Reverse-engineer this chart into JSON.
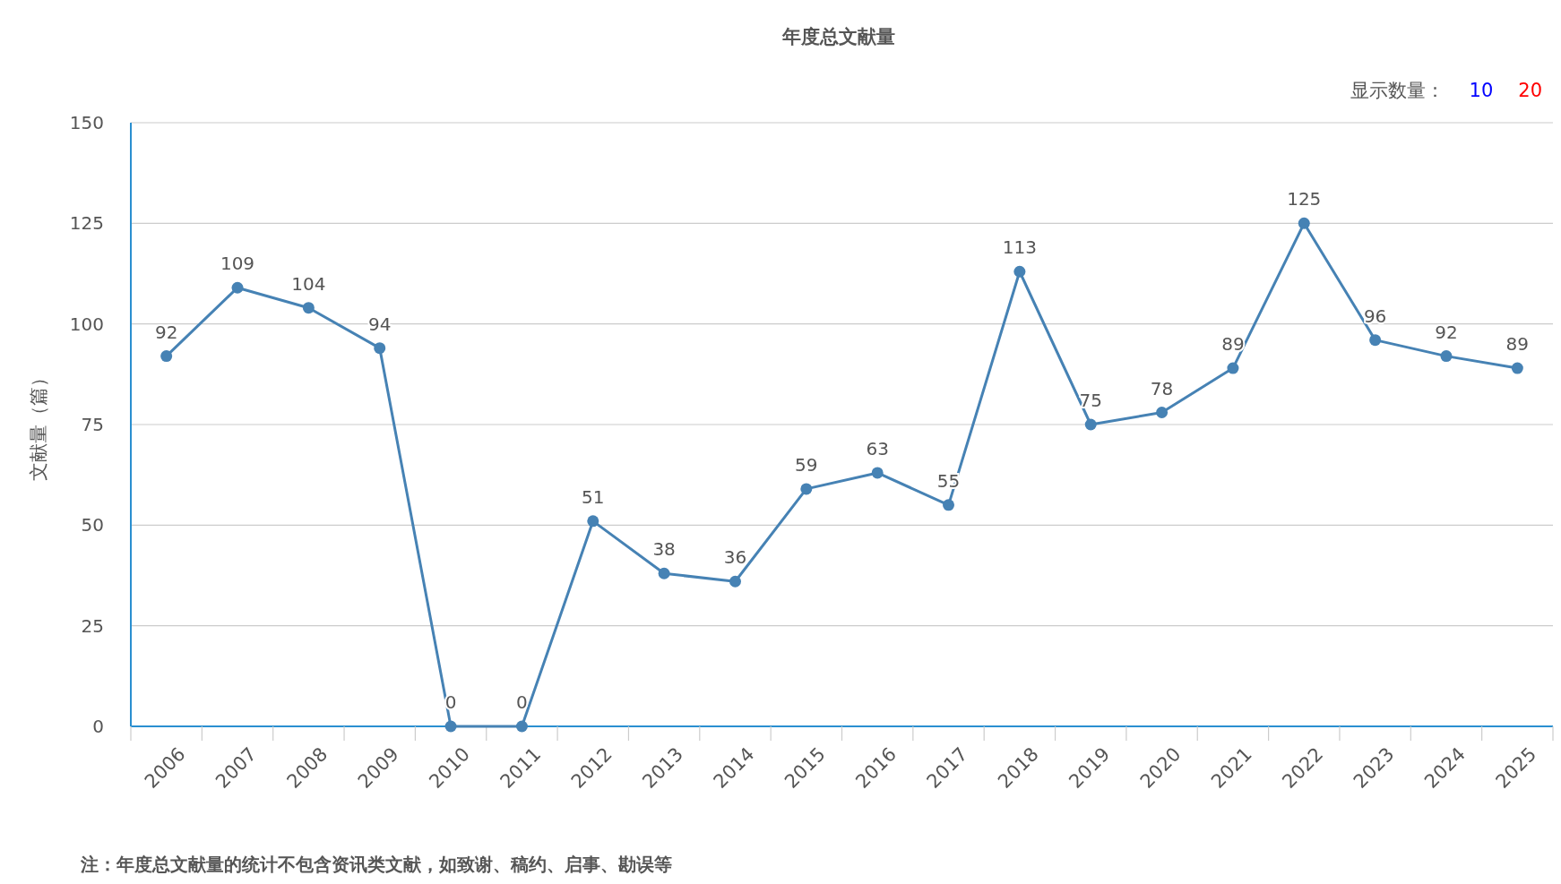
{
  "chart_data": {
    "type": "line",
    "title": "年度总文献量",
    "ylabel": "文献量（篇）",
    "categories": [
      "2006",
      "2007",
      "2008",
      "2009",
      "2010",
      "2011",
      "2012",
      "2013",
      "2014",
      "2015",
      "2016",
      "2017",
      "2018",
      "2019",
      "2020",
      "2021",
      "2022",
      "2023",
      "2024",
      "2025"
    ],
    "series": [
      {
        "color": "#4682b4",
        "values": [
          92,
          109,
          104,
          94,
          0,
          0,
          51,
          38,
          36,
          59,
          63,
          55,
          113,
          75,
          78,
          89,
          125,
          96,
          92,
          89
        ]
      }
    ],
    "ylim": [
      0,
      150
    ],
    "yticks": [
      0,
      25,
      50,
      75,
      100,
      125,
      150
    ],
    "grid": "y",
    "data_labels": true,
    "marker": "circle",
    "line_style": "solid",
    "annotations": [
      "显示数量：",
      "10",
      "20",
      "注：年度总文献量的统计不包含资讯类文献，如致谢、稿约、启事、勘误等"
    ]
  }
}
